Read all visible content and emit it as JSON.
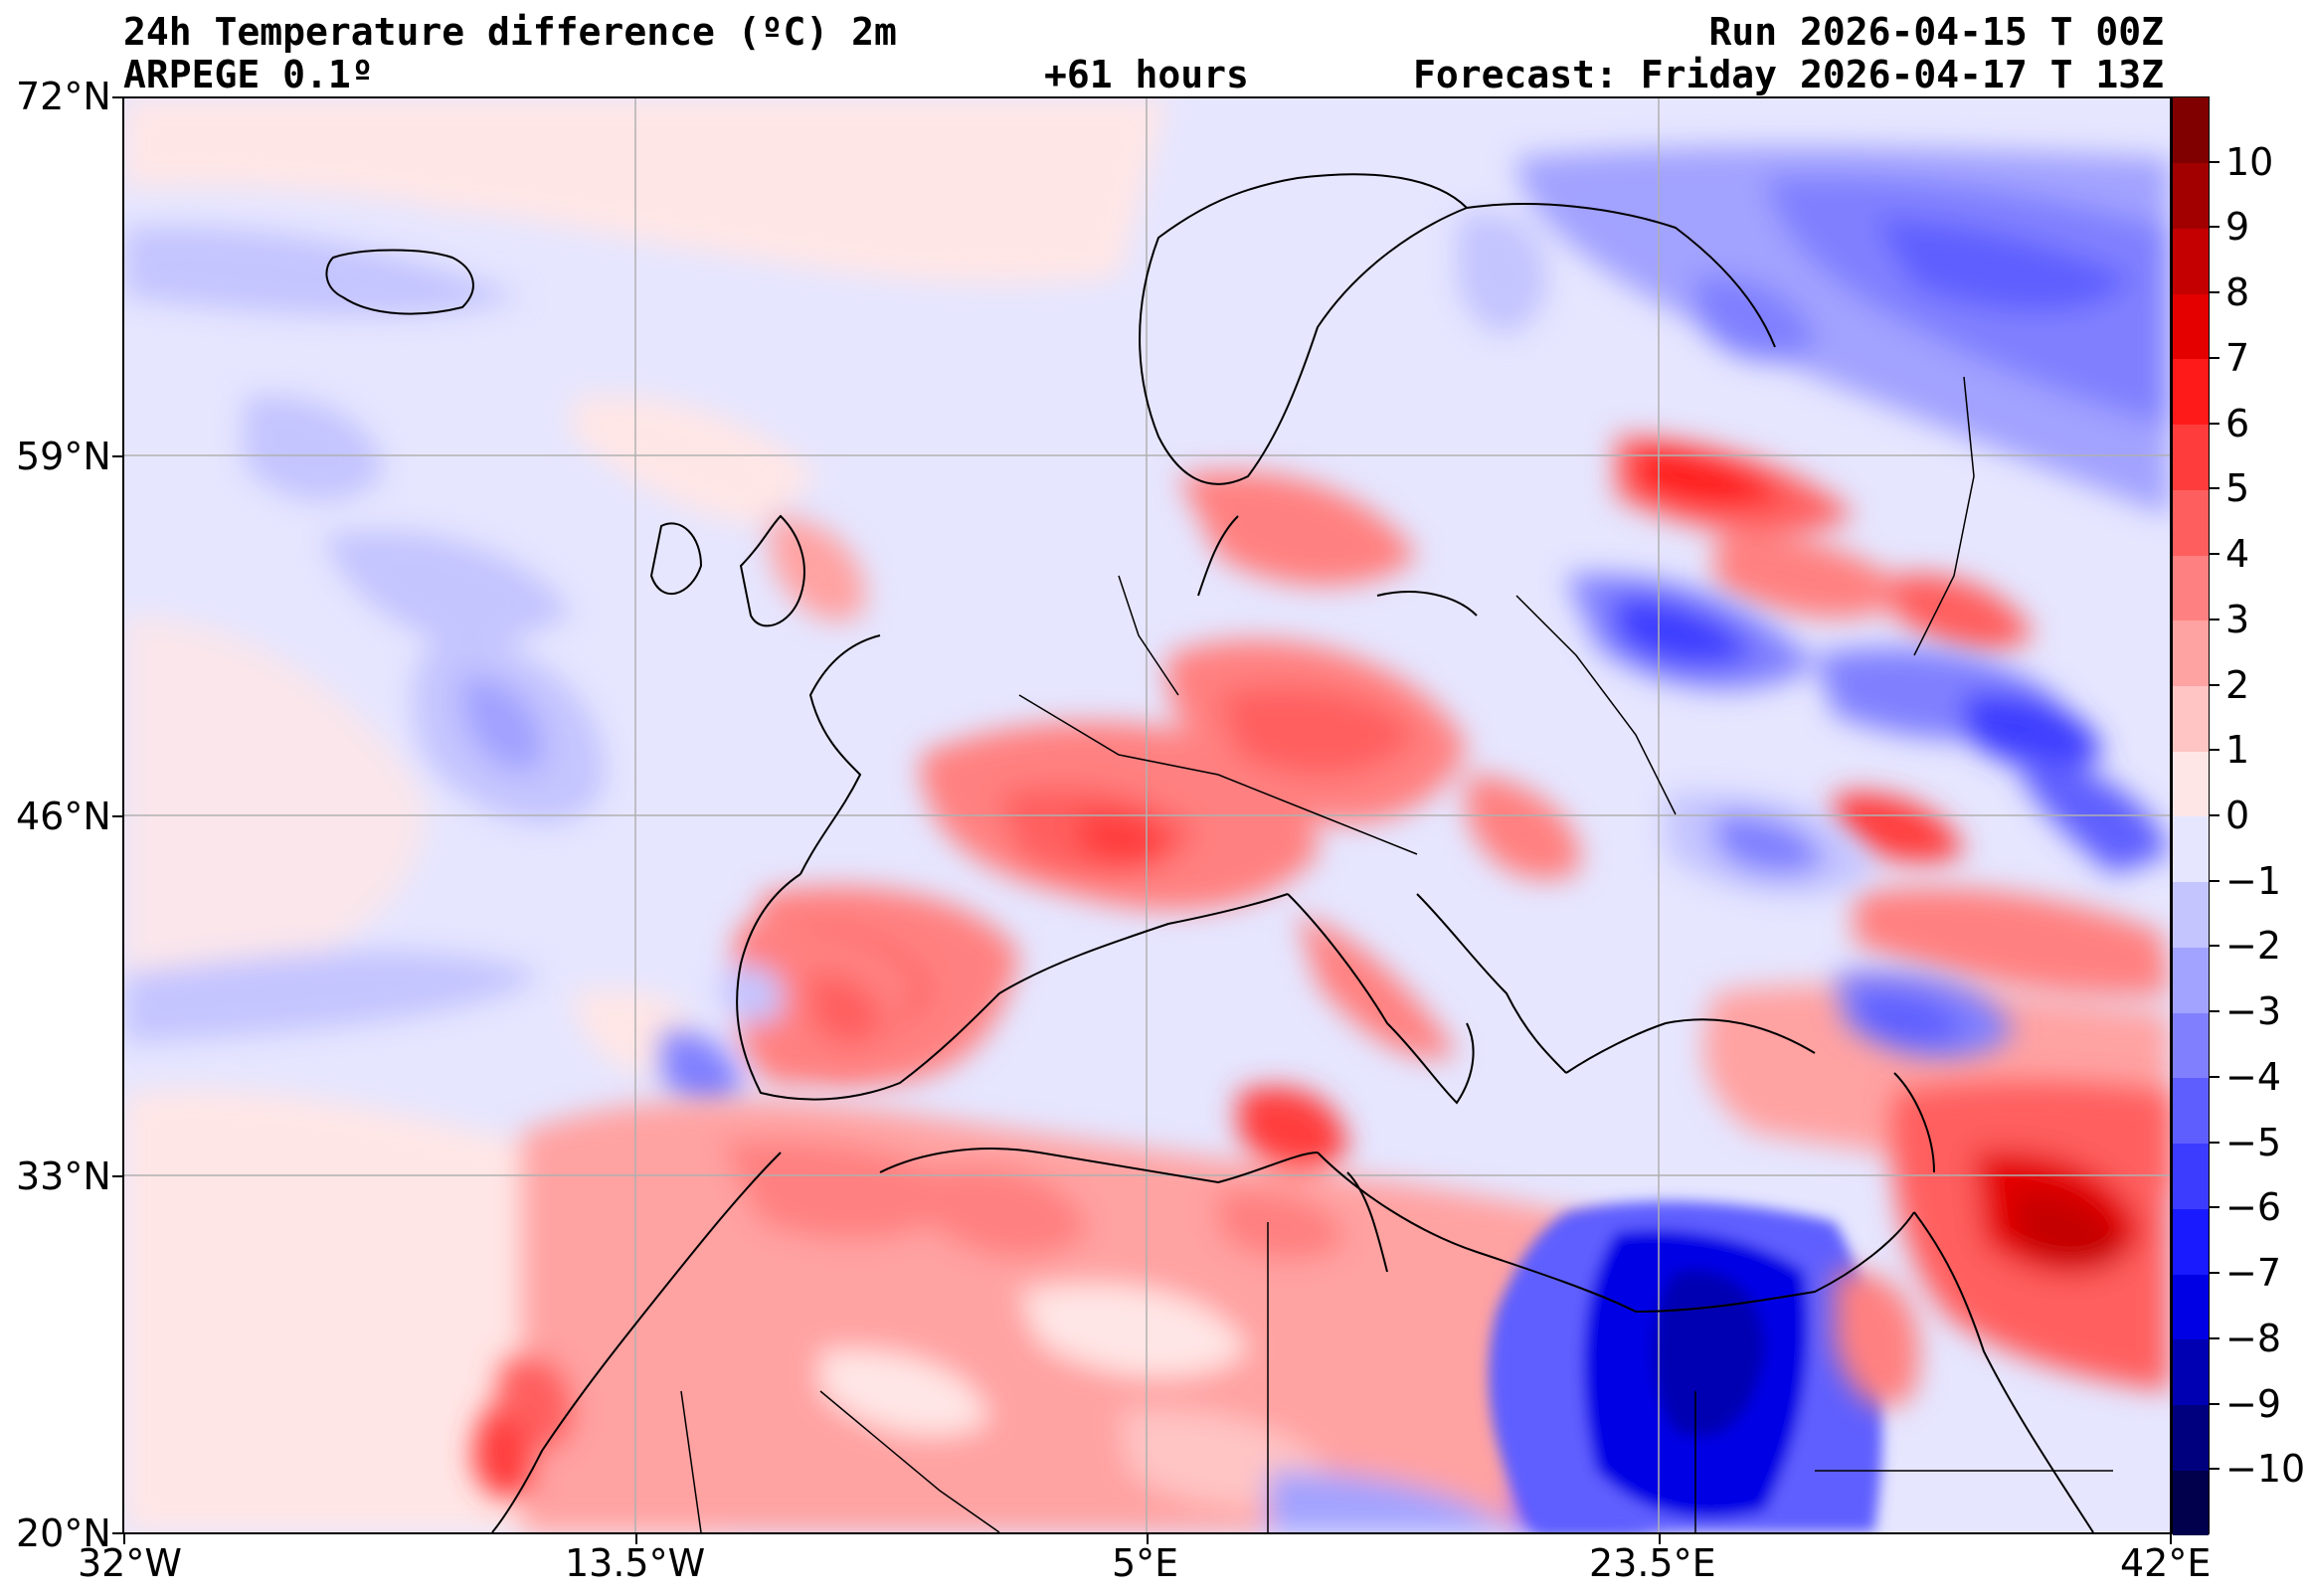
{
  "header": {
    "title": "24h Temperature difference (ºC) 2m",
    "model": "ARPEGE 0.1º",
    "lead_time": "+61 hours",
    "run": "Run 2026-04-15 T 00Z",
    "forecast": "Forecast: Friday 2026-04-17 T 13Z"
  },
  "map": {
    "lat_labels": [
      "72°N",
      "59°N",
      "46°N",
      "33°N",
      "20°N"
    ],
    "lon_labels": [
      "32°W",
      "13.5°W",
      "5°E",
      "23.5°E",
      "42°E"
    ],
    "lat_range": [
      20,
      72
    ],
    "lon_range": [
      -32,
      42
    ],
    "gridlines": true
  },
  "colorbar": {
    "levels": [
      -11,
      -10,
      -9,
      -8,
      -7,
      -6,
      -5,
      -4,
      -3,
      -2,
      -1,
      0,
      1,
      2,
      3,
      4,
      5,
      6,
      7,
      8,
      9,
      10,
      11
    ],
    "tick_labels": [
      "−10",
      "−9",
      "−8",
      "−7",
      "−6",
      "−5",
      "−4",
      "−3",
      "−2",
      "−1",
      "0",
      "1",
      "2",
      "3",
      "4",
      "5",
      "6",
      "7",
      "8",
      "9",
      "10"
    ],
    "colors": [
      "#00004c",
      "#00007f",
      "#0000b2",
      "#0000e5",
      "#1a1aff",
      "#3c3cff",
      "#5e5eff",
      "#8080ff",
      "#a2a2ff",
      "#c4c4ff",
      "#e6e6ff",
      "#ffe6e6",
      "#ffc4c4",
      "#ffa2a2",
      "#ff8080",
      "#ff5e5e",
      "#ff3c3c",
      "#ff1a1a",
      "#e50000",
      "#c40000",
      "#a20000",
      "#800000"
    ]
  }
}
